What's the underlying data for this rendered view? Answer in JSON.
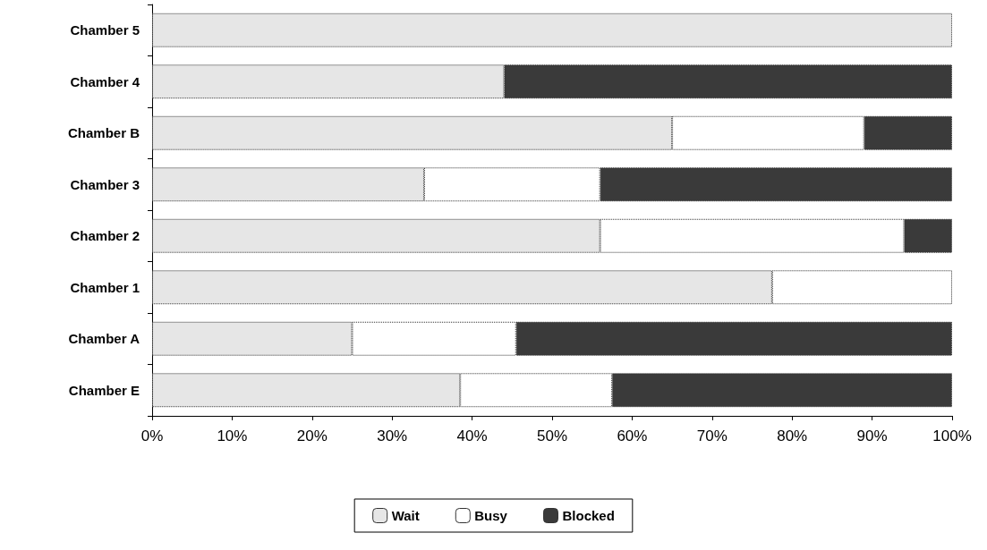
{
  "chart_data": {
    "type": "bar",
    "orientation": "horizontal",
    "stacked": true,
    "categories": [
      "Chamber 5",
      "Chamber 4",
      "Chamber B",
      "Chamber 3",
      "Chamber 2",
      "Chamber 1",
      "Chamber A",
      "Chamber E"
    ],
    "series": [
      {
        "name": "Wait",
        "color": "#e6e6e6",
        "values": [
          100,
          44,
          65,
          34,
          56,
          77.5,
          25,
          38.5
        ]
      },
      {
        "name": "Busy",
        "color": "#ffffff",
        "values": [
          0,
          0,
          24,
          22,
          38,
          22.5,
          20.5,
          19
        ]
      },
      {
        "name": "Blocked",
        "color": "#3a3a3a",
        "values": [
          0,
          56,
          11,
          44,
          6,
          0,
          54.5,
          42.5
        ]
      }
    ],
    "xlim": [
      0,
      100
    ],
    "xticks": [
      {
        "value": 0,
        "label": "0%"
      },
      {
        "value": 10,
        "label": "10%"
      },
      {
        "value": 20,
        "label": "20%"
      },
      {
        "value": 30,
        "label": "30%"
      },
      {
        "value": 40,
        "label": "40%"
      },
      {
        "value": 50,
        "label": "50%"
      },
      {
        "value": 60,
        "label": "60%"
      },
      {
        "value": 70,
        "label": "70%"
      },
      {
        "value": 80,
        "label": "80%"
      },
      {
        "value": 90,
        "label": "90%"
      },
      {
        "value": 100,
        "label": "100%"
      }
    ],
    "grid": false,
    "legend": "bottom"
  }
}
